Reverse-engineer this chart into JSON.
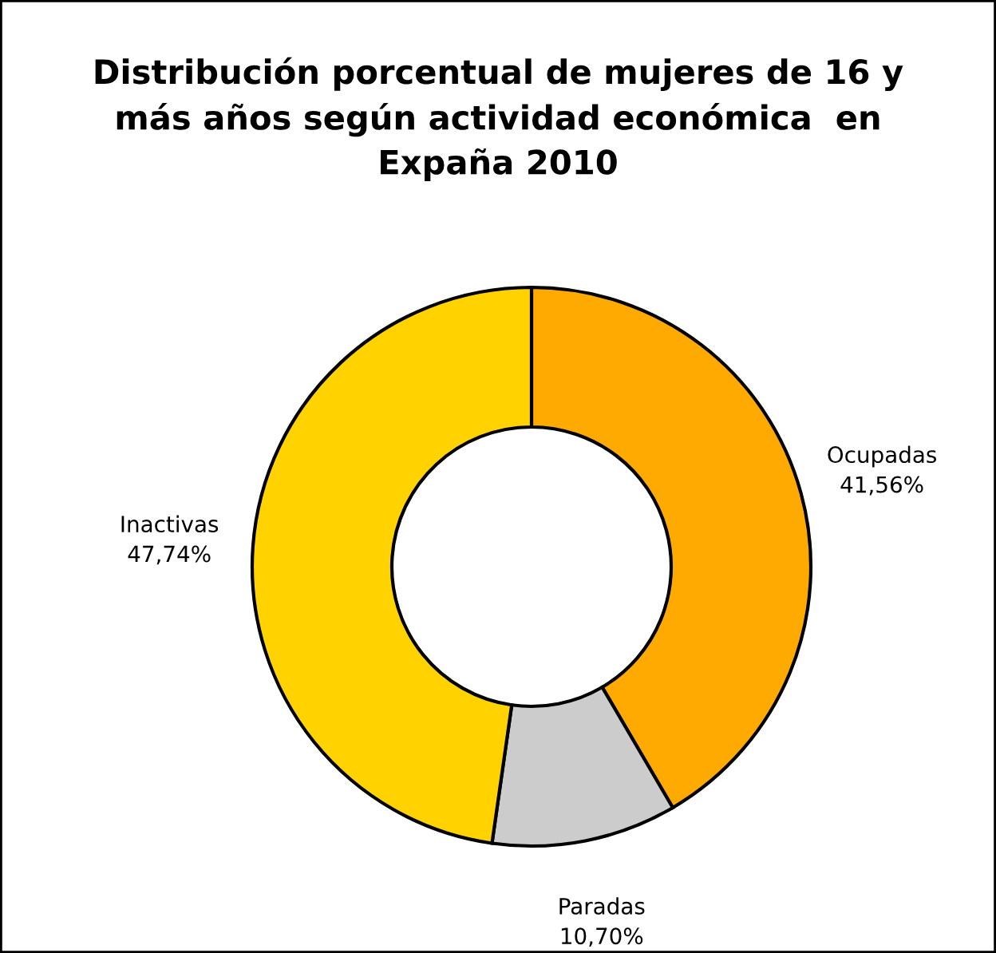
{
  "chart_data": {
    "type": "donut",
    "title": "Distribución porcentual de mujeres de 16 y\nmás años según actividad económica  en\nExpaña 2010",
    "categories": [
      "Ocupadas",
      "Paradas",
      "Inactivas"
    ],
    "values": [
      41.56,
      10.7,
      47.74
    ],
    "colors": [
      "#ffaa00",
      "#cccccc",
      "#ffd200"
    ],
    "value_labels": [
      "41,56%",
      "10,70%",
      "47,74%"
    ]
  }
}
